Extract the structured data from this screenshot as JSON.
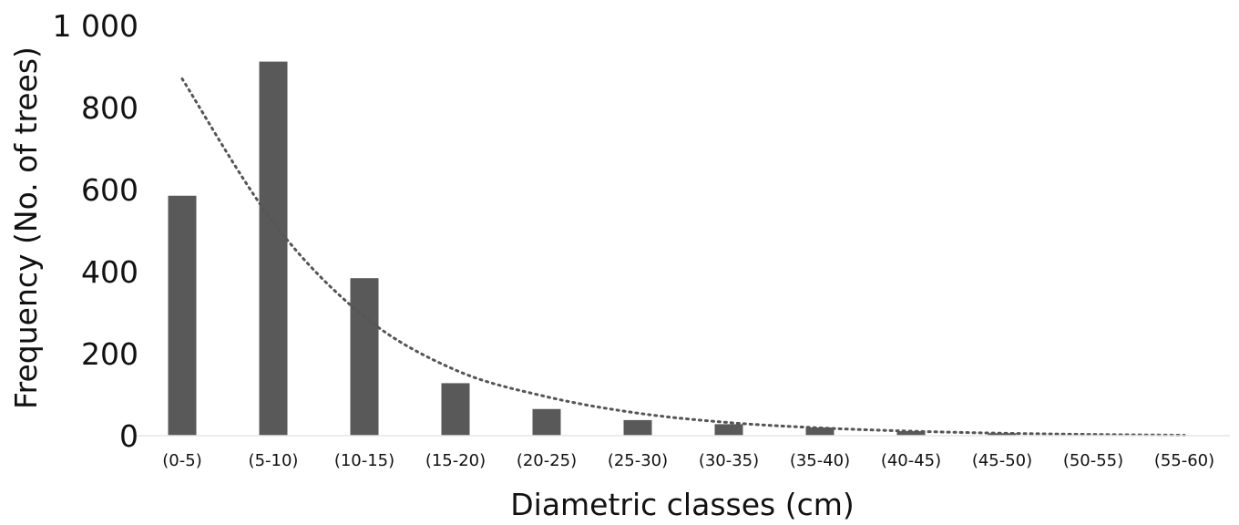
{
  "chart_data": {
    "type": "bar",
    "title": "",
    "xlabel": "Diametric classes (cm)",
    "ylabel": "Frequency (No. of trees)",
    "categories": [
      "(0-5)",
      "(5-10)",
      "(10-15)",
      "(15-20)",
      "(20-25)",
      "(25-30)",
      "(30-35)",
      "(35-40)",
      "(40-45)",
      "(45-50)",
      "(50-55)",
      "(55-60)"
    ],
    "values": [
      585,
      912,
      384,
      128,
      65,
      38,
      28,
      20,
      11,
      6,
      0,
      0
    ],
    "ylim": [
      0,
      1000
    ],
    "yticks": [
      0,
      200,
      400,
      600,
      800,
      1000
    ],
    "ytick_labels": [
      "0",
      "200",
      "400",
      "600",
      "800",
      "1 000"
    ],
    "trend": {
      "style": "dotted",
      "x": [
        "(0-5)",
        "(5-10)",
        "(10-15)",
        "(15-20)",
        "(20-25)",
        "(25-30)",
        "(30-35)",
        "(35-40)",
        "(40-45)",
        "(45-50)",
        "(50-55)",
        "(55-60)"
      ],
      "values": [
        870,
        520,
        290,
        160,
        95,
        55,
        32,
        19,
        11,
        6,
        3,
        1
      ]
    },
    "grid": false,
    "legend": "none",
    "colors": {
      "bar": "#595959",
      "trend": "#555555",
      "text": "#111111"
    }
  }
}
